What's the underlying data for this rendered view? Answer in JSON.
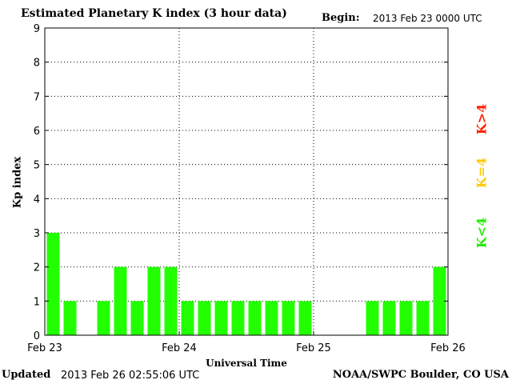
{
  "header": {
    "title": "Estimated Planetary K index (3 hour data)",
    "begin_label": "Begin:",
    "begin_value": "2013 Feb 23 0000 UTC"
  },
  "footer": {
    "updated_label": "Updated",
    "updated_value": "2013 Feb 26 02:55:06 UTC",
    "credit": "NOAA/SWPC Boulder, CO USA"
  },
  "legend": {
    "greater": {
      "label": "K>4",
      "color": "#ff2200"
    },
    "equal": {
      "label": "K=4",
      "color": "#ffcc00"
    },
    "less": {
      "label": "K<4",
      "color": "#22ee00"
    }
  },
  "chart_data": {
    "type": "bar",
    "title": "Estimated Planetary K index (3 hour data)",
    "xlabel": "Universal Time",
    "ylabel": "Kp index",
    "ylim": [
      0,
      9
    ],
    "yticks": [
      "0",
      "1",
      "2",
      "3",
      "4",
      "5",
      "6",
      "7",
      "8",
      "9"
    ],
    "xticks": [
      "Feb 23",
      "Feb 24",
      "Feb 25",
      "Feb 26"
    ],
    "interval_hours": 3,
    "grid": true,
    "bar_color": "#22ff00",
    "values": [
      3,
      1,
      0,
      1,
      2,
      1,
      2,
      2,
      1,
      1,
      1,
      1,
      1,
      1,
      1,
      1,
      0,
      0,
      0,
      1,
      1,
      1,
      1,
      2
    ]
  }
}
